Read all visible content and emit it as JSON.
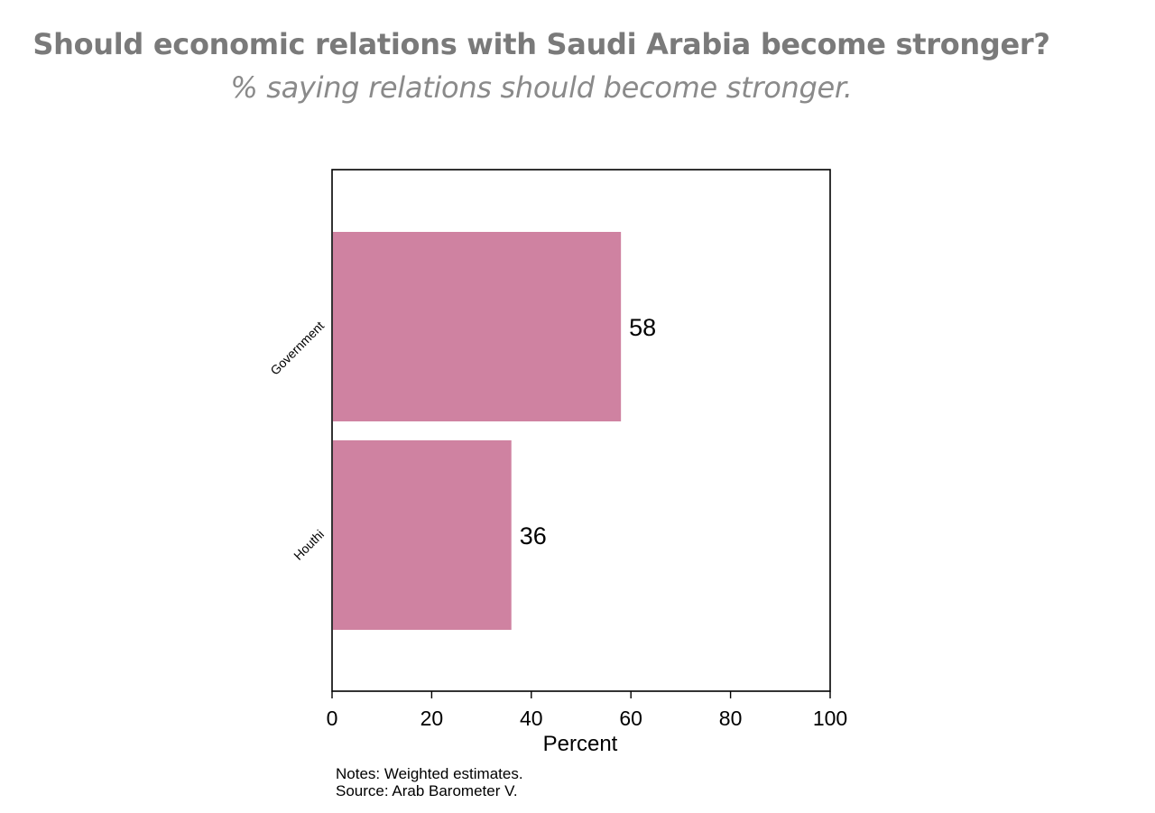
{
  "title": "Should economic relations with Saudi Arabia become stronger?",
  "subtitle": "% saying relations should become stronger.",
  "notes": {
    "line1": "Notes: Weighted estimates.",
    "line2": "Source: Arab Barometer V."
  },
  "chart_data": {
    "type": "bar",
    "orientation": "horizontal",
    "categories": [
      "Government",
      "Houthi"
    ],
    "values": [
      58,
      36
    ],
    "data_labels": [
      "58",
      "36"
    ],
    "xlabel": "Percent",
    "ylabel": "",
    "xlim": [
      0,
      100
    ],
    "xticks": [
      0,
      20,
      40,
      60,
      80,
      100
    ],
    "grid": false,
    "bar_color": "#cf82a1"
  }
}
